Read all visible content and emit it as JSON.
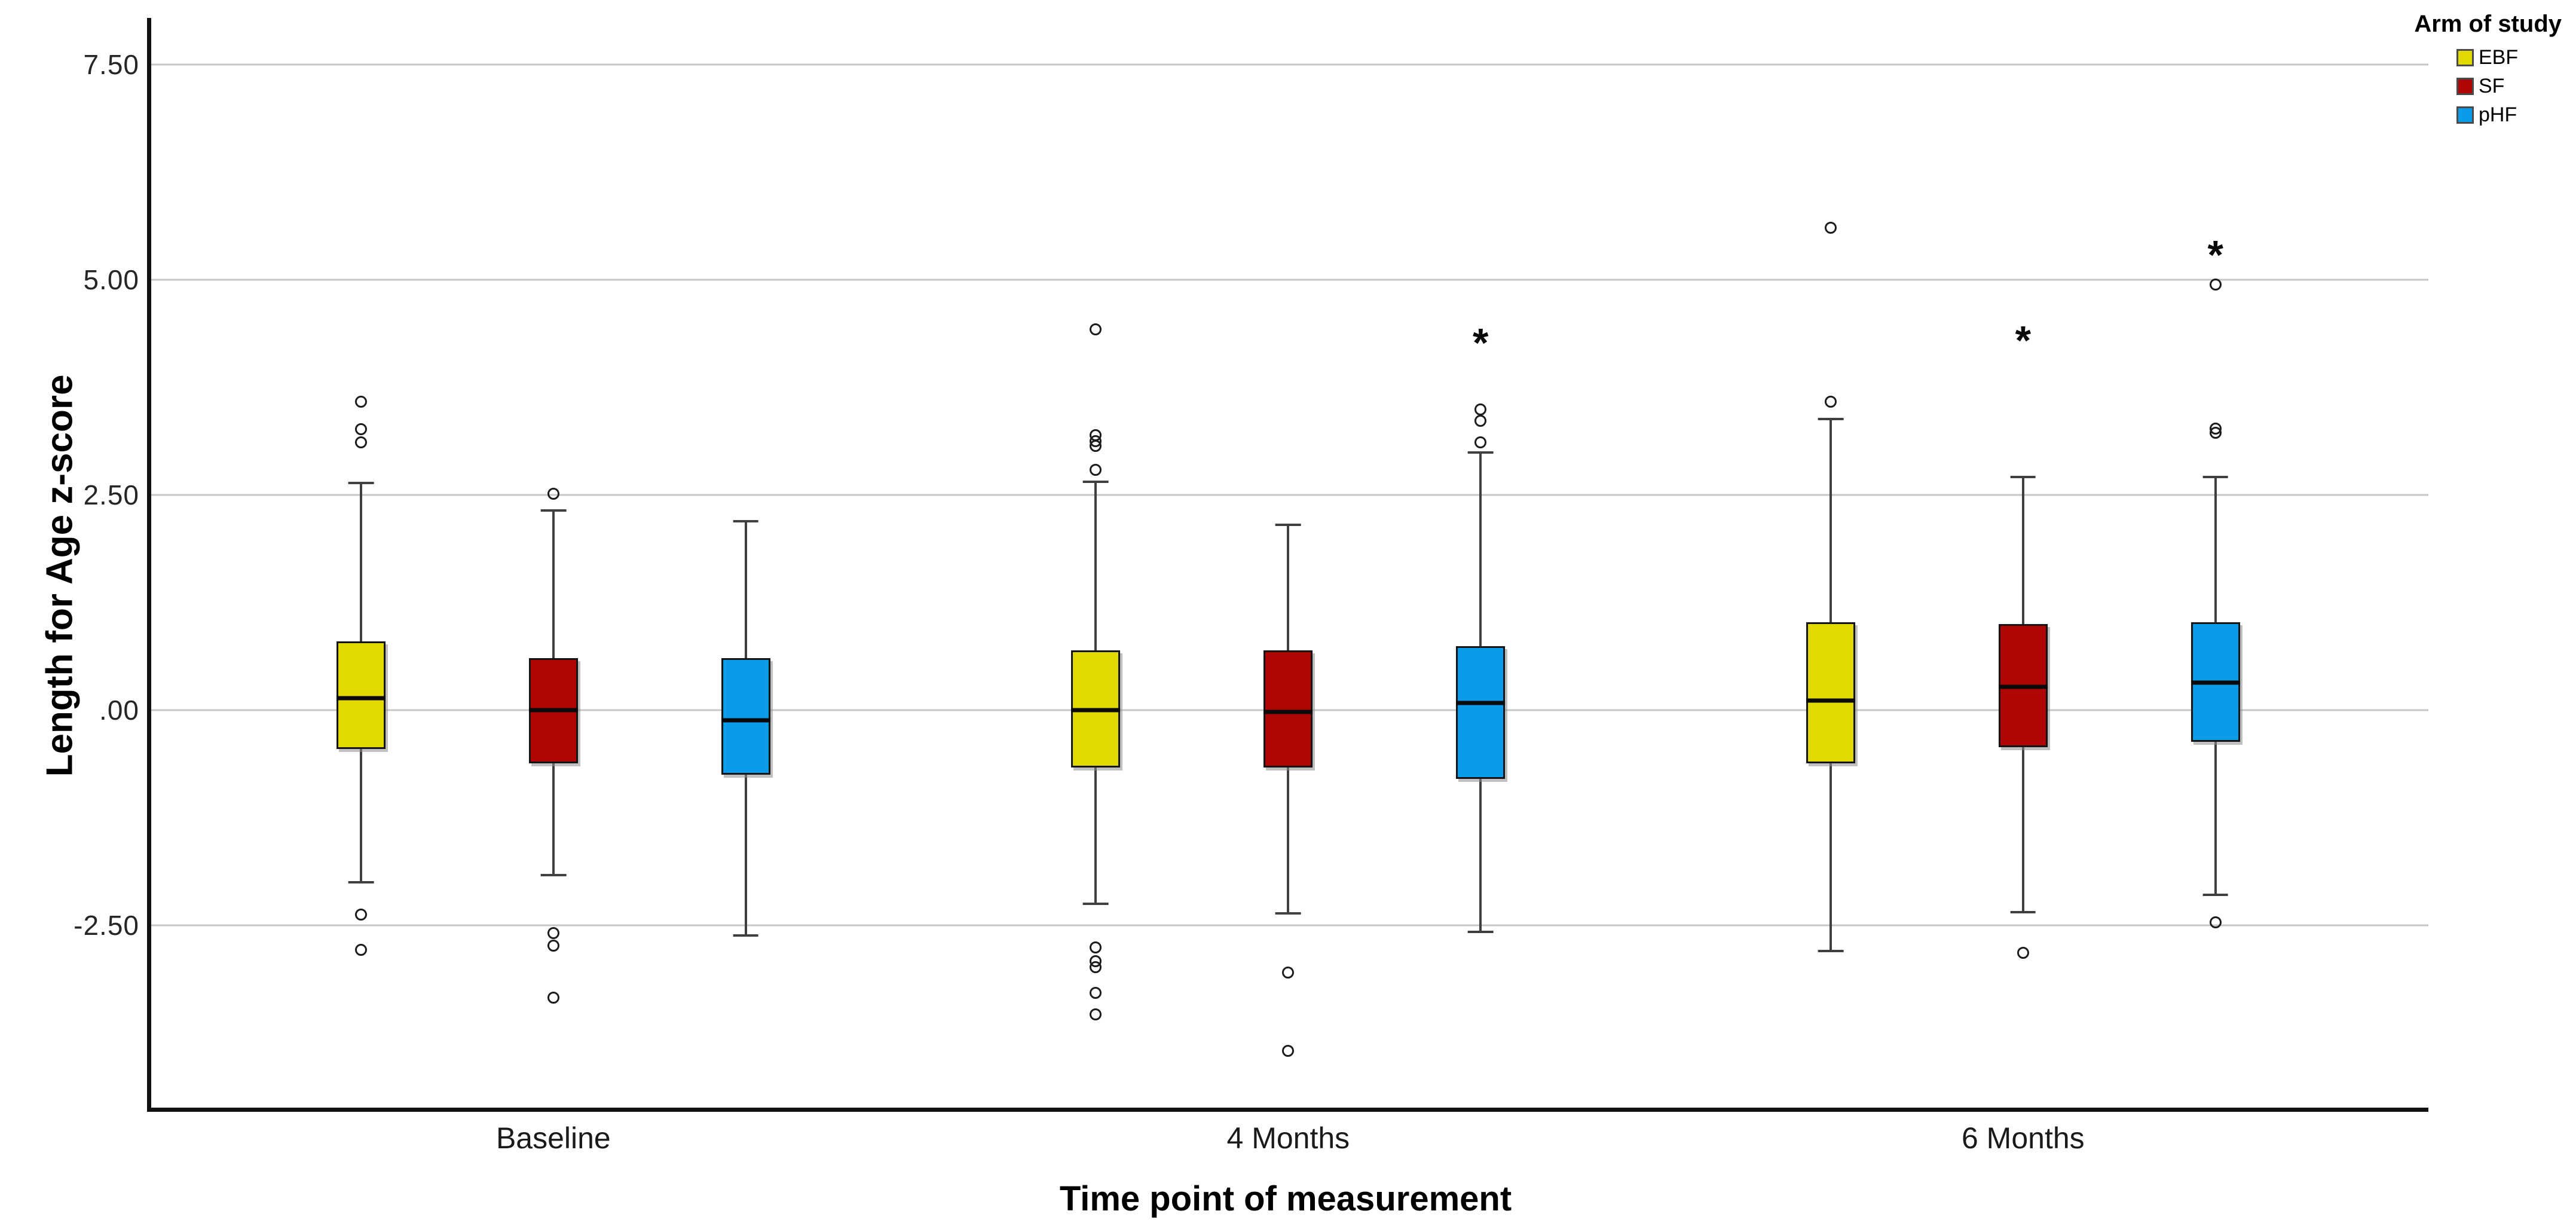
{
  "axes": {
    "y_title": "Length for Age z-score",
    "x_title": "Time point of measurement"
  },
  "legend": {
    "title": "Arm of study",
    "items": [
      {
        "label": "EBF",
        "color": "#e2d900"
      },
      {
        "label": "SF",
        "color": "#af0505"
      },
      {
        "label": "pHF",
        "color": "#0a9ce8"
      }
    ]
  },
  "colors": {
    "gridline": "#c7c7c7",
    "axis": "#111111",
    "ebf_yellow": "#e2d900",
    "sf_red": "#af0505",
    "phf_blue": "#0a9ce8"
  },
  "chart_data": {
    "type": "boxplot",
    "title": "",
    "xlabel": "Time point of measurement",
    "ylabel": "Length for Age z-score",
    "categories": [
      "Baseline",
      "4 Months",
      "6 Months"
    ],
    "y_ticks": [
      {
        "label": "7.50",
        "value": 7.5
      },
      {
        "label": "5.00",
        "value": 5.0
      },
      {
        "label": "2.50",
        "value": 2.5
      },
      {
        "label": ".00",
        "value": 0.0
      },
      {
        "label": "-2.50",
        "value": -2.5
      }
    ],
    "ylim": [
      -4.62,
      8.04
    ],
    "grid": true,
    "legend_position": "top-right",
    "series": [
      {
        "name": "EBF",
        "color": "#e2d900",
        "boxes": [
          {
            "category": "Baseline",
            "q1": -0.45,
            "median": 0.14,
            "q3": 0.8,
            "whisker_low": -2.0,
            "whisker_high": 2.64,
            "outliers": [
              3.58,
              3.26,
              3.11,
              -2.38,
              -2.79
            ],
            "extremes": []
          },
          {
            "category": "4 Months",
            "q1": -0.67,
            "median": 0.0,
            "q3": 0.69,
            "whisker_low": -2.25,
            "whisker_high": 2.65,
            "outliers": [
              4.42,
              3.19,
              3.12,
              3.07,
              2.79,
              -2.76,
              -2.92,
              -2.99,
              -3.29,
              -3.54
            ],
            "extremes": []
          },
          {
            "category": "6 Months",
            "q1": -0.62,
            "median": 0.11,
            "q3": 1.02,
            "whisker_low": -2.8,
            "whisker_high": 3.38,
            "outliers": [
              5.6,
              3.58
            ],
            "extremes": []
          }
        ]
      },
      {
        "name": "SF",
        "color": "#af0505",
        "boxes": [
          {
            "category": "Baseline",
            "q1": -0.62,
            "median": 0.0,
            "q3": 0.6,
            "whisker_low": -1.92,
            "whisker_high": 2.32,
            "outliers": [
              2.51,
              -2.59,
              -2.74,
              -3.34
            ],
            "extremes": []
          },
          {
            "category": "4 Months",
            "q1": -0.67,
            "median": -0.02,
            "q3": 0.69,
            "whisker_low": -2.36,
            "whisker_high": 2.15,
            "outliers": [
              -3.05,
              -3.96
            ],
            "extremes": []
          },
          {
            "category": "6 Months",
            "q1": -0.43,
            "median": 0.27,
            "q3": 1.0,
            "whisker_low": -2.35,
            "whisker_high": 2.71,
            "outliers": [
              -2.82
            ],
            "extremes": [
              4.36
            ]
          }
        ]
      },
      {
        "name": "pHF",
        "color": "#0a9ce8",
        "boxes": [
          {
            "category": "Baseline",
            "q1": -0.75,
            "median": -0.12,
            "q3": 0.6,
            "whisker_low": -2.62,
            "whisker_high": 2.19,
            "outliers": [],
            "extremes": []
          },
          {
            "category": "4 Months",
            "q1": -0.8,
            "median": 0.08,
            "q3": 0.74,
            "whisker_low": -2.58,
            "whisker_high": 2.99,
            "outliers": [
              3.49,
              3.36,
              3.11
            ],
            "extremes": [
              4.33
            ]
          },
          {
            "category": "6 Months",
            "q1": -0.37,
            "median": 0.32,
            "q3": 1.02,
            "whisker_low": -2.15,
            "whisker_high": 2.71,
            "outliers": [
              4.94,
              3.27,
              3.22,
              -2.47
            ],
            "extremes": [
              5.35
            ]
          }
        ]
      }
    ],
    "layout": {
      "category_centers": [
        0.1766,
        0.4993,
        0.822
      ],
      "series_offset": 0.0845,
      "box_width": 0.0215,
      "cap_width": 0.0112
    }
  }
}
